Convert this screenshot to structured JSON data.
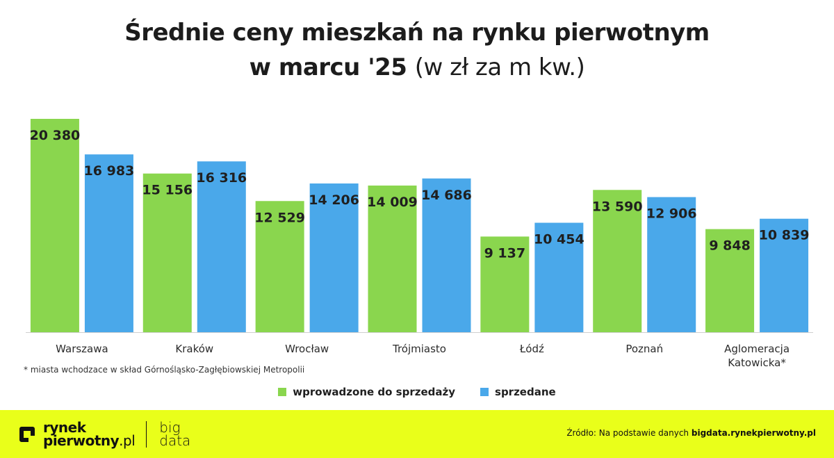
{
  "title": {
    "line1": "Średnie ceny mieszkań na rynku pierwotnym",
    "line2_bold": "w marcu '25",
    "line2_light": "(w zł za m kw.)"
  },
  "chart_data": {
    "type": "bar",
    "title": "Średnie ceny mieszkań na rynku pierwotnym w marcu '25 (w zł za m kw.)",
    "categories": [
      "Warszawa",
      "Kraków",
      "Wrocław",
      "Trójmiasto",
      "Łódź",
      "Poznań",
      "Aglomeracja Katowicka*"
    ],
    "category_label_lines": [
      [
        "Warszawa"
      ],
      [
        "Kraków"
      ],
      [
        "Wrocław"
      ],
      [
        "Trójmiasto"
      ],
      [
        "Łódź"
      ],
      [
        "Poznań"
      ],
      [
        "Aglomeracja",
        "Katowicka*"
      ]
    ],
    "series": [
      {
        "name": "wprowadzone do sprzedaży",
        "color": "#8ad64e",
        "values": [
          20380,
          15156,
          12529,
          14009,
          9137,
          13590,
          9848
        ],
        "labels": [
          "20 380",
          "15 156",
          "12 529",
          "14 009",
          "9 137",
          "13 590",
          "9 848"
        ]
      },
      {
        "name": "sprzedane",
        "color": "#4aa8ea",
        "values": [
          16983,
          16316,
          14206,
          14686,
          10454,
          12906,
          10839
        ],
        "labels": [
          "16 983",
          "16 316",
          "14 206",
          "14 686",
          "10 454",
          "12 906",
          "10 839"
        ]
      }
    ],
    "ylim": [
      0,
      20380
    ],
    "grid": false,
    "legend_position": "bottom-center"
  },
  "footnote": "* miasta wchodzace w skład Górnośląsko-Zagłębiowskiej Metropolii",
  "footer": {
    "logo_line1": "rynek",
    "logo_line2_main": "pierwotny",
    "logo_line2_suffix": ".pl",
    "logo_sub1": "big",
    "logo_sub2": "data",
    "source_prefix": "Źródło: Na podstawie danych",
    "source_site": "bigdata.rynekpierwotny.pl",
    "background_color": "#e9ff1a"
  }
}
